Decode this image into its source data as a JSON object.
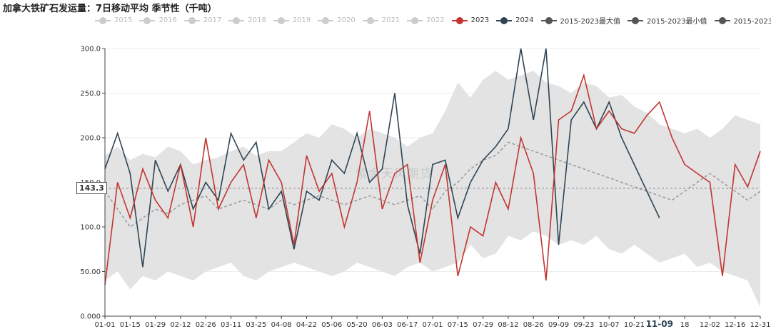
{
  "title": "加拿大铁矿石发运量：7日移动平均 季节性（千吨）",
  "watermark": "紫金天风期货",
  "pointer_value": "143.3",
  "legend": [
    {
      "label": "2015",
      "color": "#cccccc",
      "active": false
    },
    {
      "label": "2016",
      "color": "#cccccc",
      "active": false
    },
    {
      "label": "2017",
      "color": "#cccccc",
      "active": false
    },
    {
      "label": "2018",
      "color": "#cccccc",
      "active": false
    },
    {
      "label": "2019",
      "color": "#cccccc",
      "active": false
    },
    {
      "label": "2020",
      "color": "#cccccc",
      "active": false
    },
    {
      "label": "2021",
      "color": "#cccccc",
      "active": false
    },
    {
      "label": "2022",
      "color": "#cccccc",
      "active": false
    },
    {
      "label": "2023",
      "color": "#c23531",
      "active": true
    },
    {
      "label": "2024",
      "color": "#2f4554",
      "active": true
    },
    {
      "label": "2015-2023最大值",
      "color": "#555555",
      "active": true
    },
    {
      "label": "2015-2023最小值",
      "color": "#555555",
      "active": true
    },
    {
      "label": "2015-2023均值",
      "color": "#555555",
      "active": true
    }
  ],
  "chart_data": {
    "type": "line",
    "title": "加拿大铁矿石发运量：7日移动平均 季节性（千吨）",
    "xlabel": "",
    "ylabel": "",
    "ylim": [
      0,
      300
    ],
    "y_ticks": [
      "0.000",
      "50.00",
      "100.0",
      "150.0",
      "200.0",
      "250.0",
      "300.0"
    ],
    "x_ticks": [
      "01-01",
      "01-15",
      "01-29",
      "02-12",
      "02-26",
      "03-11",
      "03-25",
      "04-08",
      "04-22",
      "05-06",
      "05-20",
      "06-03",
      "06-17",
      "07-01",
      "07-15",
      "07-29",
      "08-12",
      "08-26",
      "09-09",
      "09-23",
      "10-07",
      "10-21",
      "11-09",
      "18",
      "12-02",
      "12-16",
      "12-31"
    ],
    "highlight_tick": "11-09",
    "grid": true,
    "legend_position": "top",
    "x_days": [
      0,
      7,
      14,
      21,
      28,
      35,
      42,
      49,
      56,
      63,
      70,
      77,
      84,
      91,
      98,
      105,
      112,
      119,
      126,
      133,
      140,
      147,
      154,
      161,
      168,
      175,
      182,
      189,
      196,
      203,
      210,
      217,
      224,
      231,
      238,
      245,
      252,
      259,
      266,
      273,
      280,
      287,
      294,
      301,
      308,
      315,
      322,
      329,
      336,
      343,
      350,
      357,
      364
    ],
    "series": [
      {
        "name": "2015-2023最大值",
        "role": "max",
        "color": "#e3e3e3",
        "values": [
          180,
          190,
          175,
          182,
          178,
          190,
          185,
          170,
          175,
          178,
          185,
          190,
          180,
          185,
          185,
          195,
          205,
          200,
          215,
          210,
          200,
          210,
          205,
          200,
          190,
          200,
          205,
          230,
          262,
          245,
          265,
          275,
          265,
          270,
          275,
          262,
          258,
          250,
          262,
          258,
          245,
          248,
          235,
          228,
          215,
          210,
          205,
          210,
          200,
          210,
          225,
          220,
          215
        ]
      },
      {
        "name": "2015-2023最小值",
        "role": "min",
        "color": "#e3e3e3",
        "values": [
          40,
          50,
          30,
          45,
          40,
          50,
          45,
          40,
          50,
          55,
          60,
          45,
          40,
          50,
          55,
          60,
          55,
          50,
          45,
          50,
          60,
          55,
          50,
          45,
          55,
          60,
          50,
          55,
          60,
          80,
          65,
          70,
          90,
          85,
          95,
          90,
          80,
          85,
          80,
          90,
          75,
          70,
          80,
          70,
          60,
          65,
          70,
          55,
          60,
          50,
          45,
          40,
          10
        ]
      },
      {
        "name": "2015-2023均值",
        "role": "mean",
        "color": "#999999",
        "values": [
          140,
          120,
          100,
          110,
          120,
          115,
          125,
          130,
          135,
          120,
          125,
          130,
          125,
          120,
          130,
          125,
          130,
          135,
          130,
          125,
          130,
          135,
          130,
          125,
          130,
          135,
          120,
          140,
          150,
          165,
          175,
          180,
          195,
          190,
          185,
          180,
          175,
          170,
          165,
          160,
          155,
          150,
          145,
          140,
          135,
          130,
          140,
          150,
          160,
          150,
          140,
          130,
          140
        ]
      },
      {
        "name": "2023",
        "color": "#c23531",
        "values": [
          35,
          150,
          110,
          165,
          130,
          110,
          170,
          100,
          200,
          120,
          150,
          170,
          110,
          175,
          150,
          80,
          180,
          140,
          160,
          100,
          150,
          230,
          120,
          160,
          170,
          60,
          130,
          170,
          45,
          100,
          90,
          150,
          120,
          200,
          160,
          40,
          220,
          230,
          270,
          210,
          230,
          210,
          205,
          225,
          240,
          200,
          170,
          160,
          150,
          45,
          170,
          145,
          185
        ]
      },
      {
        "name": "2024",
        "color": "#2f4554",
        "values": [
          165,
          205,
          160,
          55,
          175,
          140,
          170,
          120,
          150,
          130,
          205,
          175,
          195,
          120,
          140,
          75,
          140,
          130,
          175,
          160,
          205,
          150,
          165,
          250,
          125,
          70,
          170,
          175,
          110,
          150,
          175,
          190,
          210,
          300,
          220,
          300,
          80,
          220,
          240,
          210,
          240,
          200,
          170,
          140,
          110
        ]
      }
    ]
  }
}
